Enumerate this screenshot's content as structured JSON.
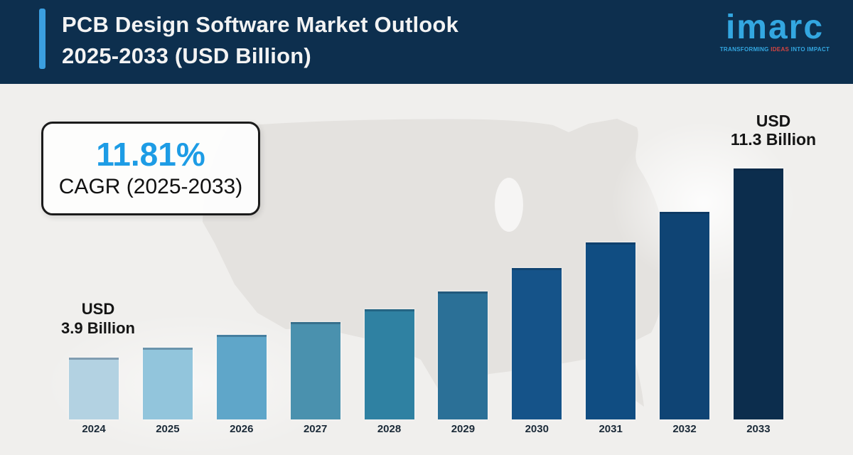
{
  "header": {
    "title_line1": "PCB Design Software Market Outlook",
    "title_line2": "2025-2033 (USD Billion)",
    "logo": {
      "brand": "imarc",
      "tagline_pre": "TRANSFORMING ",
      "tagline_accent": "IDEAS",
      "tagline_post": " INTO IMPACT"
    }
  },
  "cagr_card": {
    "value": "11.81%",
    "label": "CAGR (2025-2033)"
  },
  "annotations": {
    "start": {
      "line1": "USD",
      "line2": "3.9 Billion"
    },
    "end": {
      "line1": "USD",
      "line2": "11.3 Billion"
    }
  },
  "chart_data": {
    "type": "bar",
    "title": "PCB Design Software Market Outlook 2025-2033 (USD Billion)",
    "unit": "USD Billion",
    "categories": [
      "2024",
      "2025",
      "2026",
      "2027",
      "2028",
      "2029",
      "2030",
      "2031",
      "2032",
      "2033"
    ],
    "values": [
      3.9,
      4.3,
      4.8,
      5.3,
      5.8,
      6.5,
      7.4,
      8.4,
      9.6,
      11.3
    ],
    "labeled_points": {
      "2024": "USD 3.9 Billion",
      "2033": "USD 11.3 Billion"
    },
    "cagr_percent": 11.81,
    "cagr_period": "2025-2033",
    "ylim": [
      0,
      11.3
    ],
    "grid": false,
    "legend": false,
    "bar_colors": [
      "#b3d2e2",
      "#92c5dc",
      "#5fa6c9",
      "#4a91ae",
      "#2f81a2",
      "#2b7097",
      "#155389",
      "#104d82",
      "#0f4474",
      "#0c2d4d"
    ]
  },
  "colors": {
    "header_bg": "#0d2f4e",
    "accent_bar": "#3b9fe0",
    "body_bg": "#f0efed",
    "map_fill": "#e4e2df",
    "cagr_value": "#1d9ce5",
    "logo_blue": "#33a7e1",
    "logo_red": "#d64541",
    "text_dark": "#151515"
  }
}
